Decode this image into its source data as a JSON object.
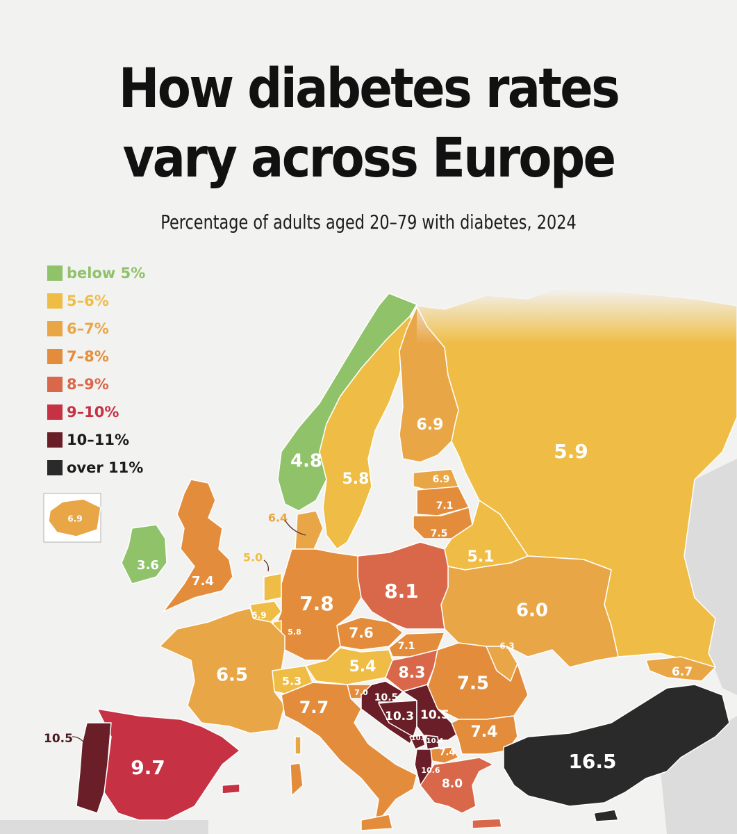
{
  "title_line1": "How diabetes rates",
  "title_line2": "vary across Europe",
  "subtitle": "Percentage of adults aged 20–79 with diabetes, 2024",
  "legend": [
    {
      "label": "below 5%",
      "color": "#8fc269"
    },
    {
      "label": "5–6%",
      "color": "#efbd45"
    },
    {
      "label": "6–7%",
      "color": "#e9a646"
    },
    {
      "label": "7–8%",
      "color": "#e38d3c"
    },
    {
      "label": "8–9%",
      "color": "#d9674a"
    },
    {
      "label": "9–10%",
      "color": "#c63143"
    },
    {
      "label": "10–11%",
      "color": "#6a1e27"
    },
    {
      "label": "over 11%",
      "color": "#2a2a2a"
    }
  ],
  "chart_data": {
    "type": "choropleth",
    "unit": "%",
    "values": [
      {
        "label": "Iceland",
        "value": 6.9
      },
      {
        "label": "Norway",
        "value": 4.8
      },
      {
        "label": "Sweden",
        "value": 5.8
      },
      {
        "label": "Finland",
        "value": 6.9
      },
      {
        "label": "Russia",
        "value": 5.9
      },
      {
        "label": "Estonia",
        "value": 6.9
      },
      {
        "label": "Latvia",
        "value": 7.1
      },
      {
        "label": "Lithuania",
        "value": 7.5
      },
      {
        "label": "Belarus",
        "value": 5.1
      },
      {
        "label": "Denmark",
        "value": 6.4
      },
      {
        "label": "Ireland",
        "value": 3.6
      },
      {
        "label": "United Kingdom",
        "value": 7.4
      },
      {
        "label": "Netherlands",
        "value": 5.0
      },
      {
        "label": "Belgium",
        "value": 5.9
      },
      {
        "label": "Luxembourg",
        "value": 5.8
      },
      {
        "label": "Germany",
        "value": 7.8
      },
      {
        "label": "Poland",
        "value": 8.1
      },
      {
        "label": "Ukraine",
        "value": 6.0
      },
      {
        "label": "Czechia",
        "value": 7.6
      },
      {
        "label": "Slovakia",
        "value": 7.1
      },
      {
        "label": "Moldova",
        "value": 6.3
      },
      {
        "label": "France",
        "value": 6.5
      },
      {
        "label": "Switzerland",
        "value": 5.3
      },
      {
        "label": "Austria",
        "value": 5.4
      },
      {
        "label": "Hungary",
        "value": 8.3
      },
      {
        "label": "Romania",
        "value": 7.5
      },
      {
        "label": "Georgia",
        "value": 6.7
      },
      {
        "label": "Slovenia",
        "value": 7.0
      },
      {
        "label": "Croatia",
        "value": 10.5
      },
      {
        "label": "Bosnia and Herzegovina",
        "value": 10.3
      },
      {
        "label": "Serbia",
        "value": 10.5
      },
      {
        "label": "Montenegro",
        "value": 10.7
      },
      {
        "label": "Kosovo",
        "value": 10.4
      },
      {
        "label": "Italy",
        "value": 7.7
      },
      {
        "label": "Bulgaria",
        "value": 7.4
      },
      {
        "label": "North Macedonia",
        "value": 7.4
      },
      {
        "label": "Albania",
        "value": 10.6
      },
      {
        "label": "Greece",
        "value": 8.0
      },
      {
        "label": "Portugal",
        "value": 10.5
      },
      {
        "label": "Spain",
        "value": 9.7
      },
      {
        "label": "Turkey",
        "value": 16.5
      }
    ]
  }
}
